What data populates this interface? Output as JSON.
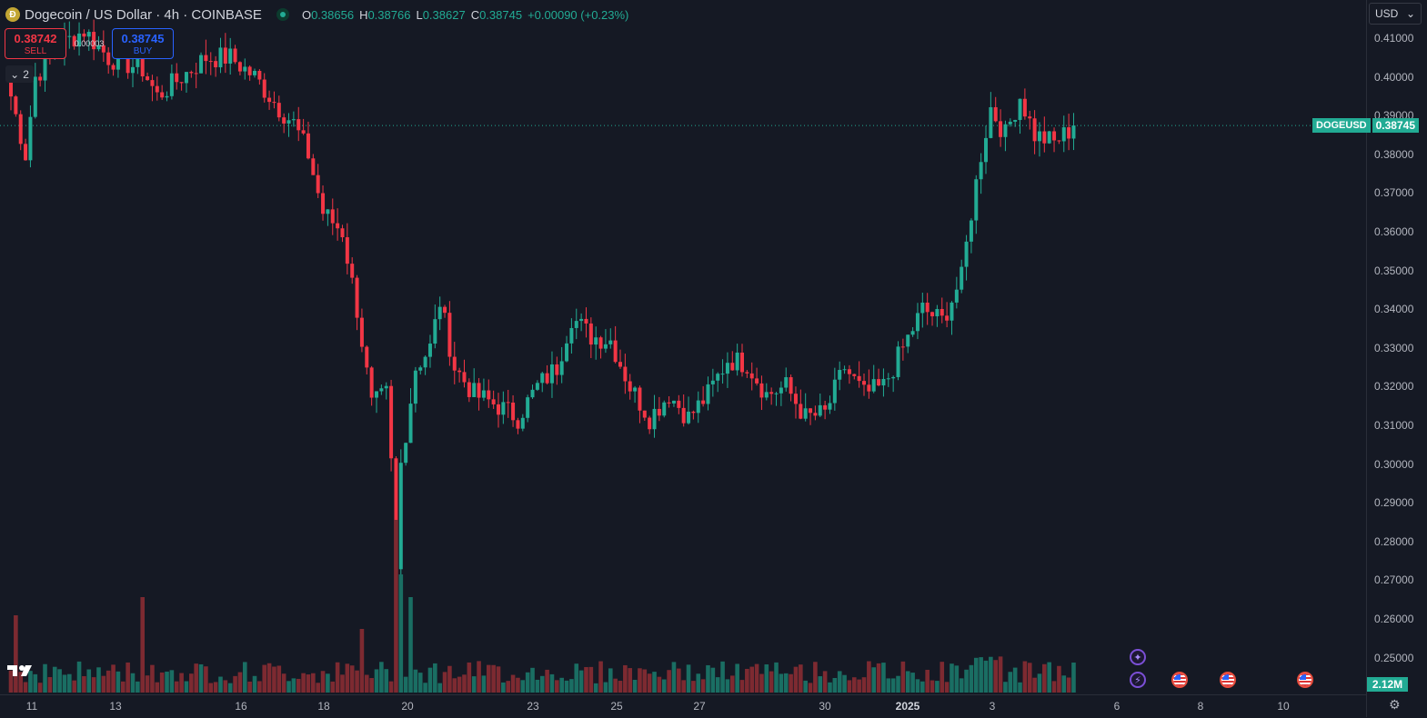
{
  "header": {
    "logo_glyph": "Ð",
    "symbol_title": "Dogecoin / US Dollar · 4h · COINBASE",
    "ohlc": [
      {
        "k": "O",
        "v": "0.38656"
      },
      {
        "k": "H",
        "v": "0.38766"
      },
      {
        "k": "L",
        "v": "0.38627"
      },
      {
        "k": "C",
        "v": "0.38745"
      }
    ],
    "change": "+0.00090 (+0.23%)"
  },
  "trade": {
    "sell_price": "0.38742",
    "sell_label": "SELL",
    "spread": "0.00003",
    "buy_price": "0.38745",
    "buy_label": "BUY"
  },
  "indicator_toggle": {
    "count": "2"
  },
  "currency": "USD",
  "price_label": {
    "symbol": "DOGEUSD",
    "price": "0.38745"
  },
  "volume_label": "2.12M",
  "price_axis": [
    "0.41000",
    "0.40000",
    "0.39000",
    "0.38000",
    "0.37000",
    "0.36000",
    "0.35000",
    "0.34000",
    "0.33000",
    "0.32000",
    "0.31000",
    "0.30000",
    "0.29000",
    "0.28000",
    "0.27000",
    "0.26000",
    "0.25000"
  ],
  "time_axis": [
    {
      "label": "11",
      "bold": false
    },
    {
      "label": "13",
      "bold": false
    },
    {
      "label": "16",
      "bold": false
    },
    {
      "label": "18",
      "bold": false
    },
    {
      "label": "20",
      "bold": false
    },
    {
      "label": "23",
      "bold": false
    },
    {
      "label": "25",
      "bold": false
    },
    {
      "label": "27",
      "bold": false
    },
    {
      "label": "30",
      "bold": false
    },
    {
      "label": "2025",
      "bold": true
    },
    {
      "label": "3",
      "bold": false
    },
    {
      "label": "6",
      "bold": false
    },
    {
      "label": "8",
      "bold": false
    },
    {
      "label": "10",
      "bold": false
    }
  ],
  "colors": {
    "up": "#22ab94",
    "down": "#f23645",
    "up_vol": "#1a6e63",
    "down_vol": "#7d2a31",
    "background": "#151924"
  },
  "icons": {
    "chevron": "chevron-down-icon",
    "settings": "settings-icon",
    "events": [
      "sparkle-icon",
      "lightning-icon",
      "us-flag-icon",
      "us-flag-icon",
      "us-flag-icon"
    ]
  },
  "chart_data": {
    "type": "candlestick",
    "ylim": [
      0.245,
      0.4125
    ],
    "last_price": 0.38745,
    "x_ticks": [
      "11",
      "13",
      "16",
      "18",
      "20",
      "23",
      "25",
      "27",
      "30",
      "2025",
      "3",
      "6",
      "8",
      "10"
    ],
    "anchors": [
      [
        0,
        0.395
      ],
      [
        3,
        0.38
      ],
      [
        5,
        0.4
      ],
      [
        10,
        0.408
      ],
      [
        15,
        0.412
      ],
      [
        20,
        0.405
      ],
      [
        27,
        0.402
      ],
      [
        30,
        0.395
      ],
      [
        35,
        0.4
      ],
      [
        40,
        0.405
      ],
      [
        45,
        0.405
      ],
      [
        50,
        0.4
      ],
      [
        55,
        0.392
      ],
      [
        58,
        0.388
      ],
      [
        61,
        0.38
      ],
      [
        64,
        0.365
      ],
      [
        68,
        0.36
      ],
      [
        71,
        0.34
      ],
      [
        74,
        0.315
      ],
      [
        77,
        0.318
      ],
      [
        78,
        0.3
      ],
      [
        79,
        0.272
      ],
      [
        80,
        0.3
      ],
      [
        83,
        0.325
      ],
      [
        86,
        0.33
      ],
      [
        88,
        0.342
      ],
      [
        91,
        0.325
      ],
      [
        95,
        0.318
      ],
      [
        100,
        0.315
      ],
      [
        104,
        0.312
      ],
      [
        108,
        0.32
      ],
      [
        112,
        0.325
      ],
      [
        115,
        0.338
      ],
      [
        119,
        0.333
      ],
      [
        123,
        0.332
      ],
      [
        127,
        0.32
      ],
      [
        131,
        0.312
      ],
      [
        135,
        0.318
      ],
      [
        139,
        0.312
      ],
      [
        143,
        0.318
      ],
      [
        147,
        0.327
      ],
      [
        151,
        0.326
      ],
      [
        155,
        0.318
      ],
      [
        159,
        0.32
      ],
      [
        163,
        0.312
      ],
      [
        167,
        0.313
      ],
      [
        171,
        0.325
      ],
      [
        175,
        0.318
      ],
      [
        179,
        0.32
      ],
      [
        183,
        0.33
      ],
      [
        187,
        0.34
      ],
      [
        191,
        0.337
      ],
      [
        195,
        0.348
      ],
      [
        197,
        0.365
      ],
      [
        199,
        0.38
      ],
      [
        201,
        0.392
      ],
      [
        204,
        0.385
      ],
      [
        207,
        0.395
      ],
      [
        210,
        0.385
      ],
      [
        214,
        0.383
      ],
      [
        218,
        0.387
      ]
    ]
  }
}
